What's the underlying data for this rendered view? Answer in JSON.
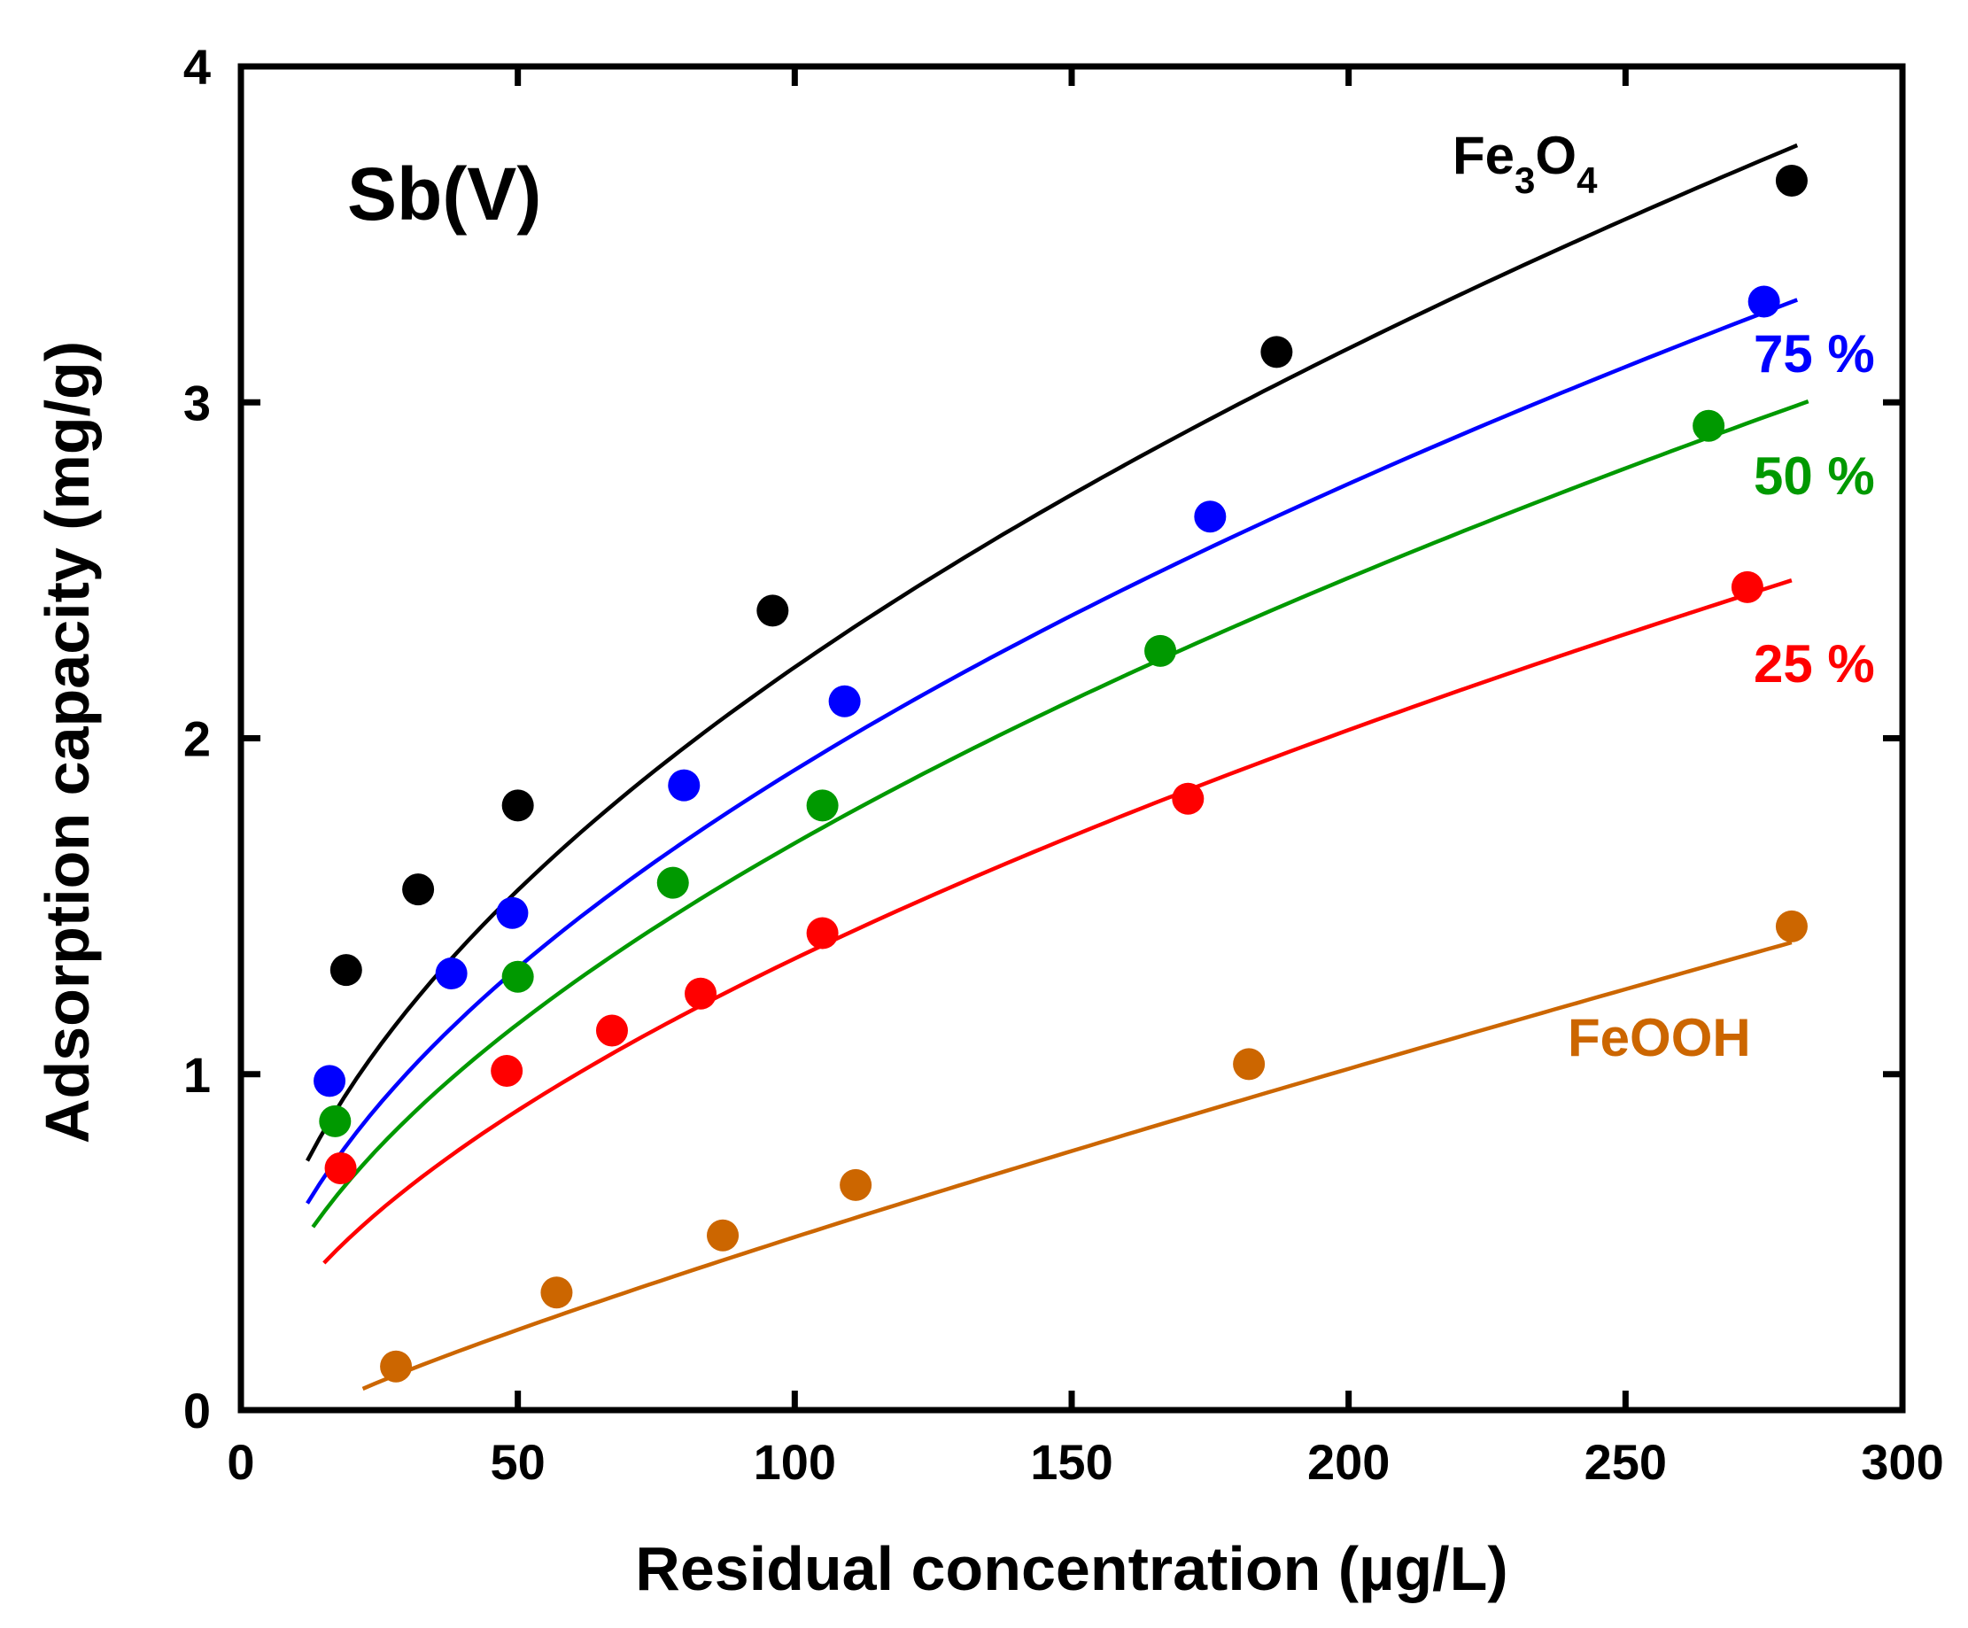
{
  "chart_data": {
    "type": "scatter",
    "title": "",
    "panel_label": "Sb(V)",
    "xlabel": "Residual concentration (µg/L)",
    "ylabel": "Adsorption capacity (mg/g)",
    "xlim": [
      0,
      300
    ],
    "ylim": [
      0,
      4
    ],
    "x_ticks": [
      0,
      50,
      100,
      150,
      200,
      250,
      300
    ],
    "y_ticks": [
      0,
      1,
      2,
      3,
      4
    ],
    "x_tick_labels": [
      "0",
      "50",
      "100",
      "150",
      "200",
      "250",
      "300"
    ],
    "y_tick_labels": [
      "0",
      "1",
      "2",
      "3",
      "4"
    ],
    "grid": false,
    "series": [
      {
        "key": "fe3o4",
        "name": "Fe3O4",
        "label_main": "Fe",
        "label_sub1": "3",
        "label_mid": "O",
        "label_sub2": "4",
        "color": "#000000",
        "points": [
          [
            19,
            1.31
          ],
          [
            32,
            1.55
          ],
          [
            50,
            1.8
          ],
          [
            96,
            2.38
          ],
          [
            187,
            3.15
          ],
          [
            280,
            3.66
          ]
        ],
        "fit": {
          "x_start": 12,
          "x_end": 281,
          "K": 0.2064,
          "n": 0.515
        }
      },
      {
        "key": "p75",
        "name": "75 %",
        "color": "#0000ff",
        "points": [
          [
            16,
            0.98
          ],
          [
            38,
            1.3
          ],
          [
            49,
            1.48
          ],
          [
            80,
            1.86
          ],
          [
            109,
            2.11
          ],
          [
            175,
            2.66
          ],
          [
            275,
            3.3
          ]
        ],
        "fit": {
          "x_start": 12,
          "x_end": 281,
          "K": 0.1637,
          "n": 0.533
        }
      },
      {
        "key": "p50",
        "name": "50 %",
        "color": "#009900",
        "points": [
          [
            17,
            0.86
          ],
          [
            50,
            1.29
          ],
          [
            78,
            1.57
          ],
          [
            105,
            1.8
          ],
          [
            166,
            2.26
          ],
          [
            265,
            2.93
          ]
        ],
        "fit": {
          "x_start": 13,
          "x_end": 283,
          "K": 0.1316,
          "n": 0.554
        }
      },
      {
        "key": "p25",
        "name": "25 %",
        "color": "#ff0000",
        "points": [
          [
            18,
            0.72
          ],
          [
            48,
            1.01
          ],
          [
            67,
            1.13
          ],
          [
            83,
            1.24
          ],
          [
            105,
            1.42
          ],
          [
            171,
            1.82
          ],
          [
            272,
            2.45
          ]
        ],
        "fit": {
          "x_start": 15,
          "x_end": 280,
          "K": 0.0884,
          "n": 0.591
        }
      },
      {
        "key": "feooh",
        "name": "FeOOH",
        "color": "#cc6600",
        "points": [
          [
            28,
            0.13
          ],
          [
            57,
            0.35
          ],
          [
            87,
            0.52
          ],
          [
            111,
            0.67
          ],
          [
            182,
            1.03
          ],
          [
            280,
            1.44
          ]
        ],
        "fit": {
          "x_start": 22,
          "x_end": 280,
          "K": 0.0102,
          "n": 0.8805,
          "x0": 14
        }
      }
    ]
  }
}
